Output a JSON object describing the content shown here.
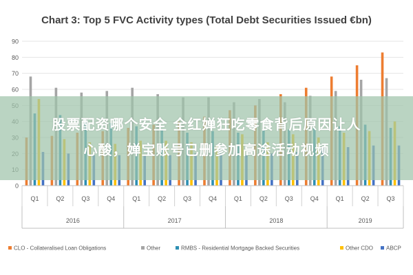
{
  "chart_data": {
    "type": "bar",
    "title": "Chart 3: Top 5 FVC Activity types (Total Debt Securities Issued €bn)",
    "ylim": [
      0,
      90
    ],
    "yticks": [
      0,
      10,
      20,
      30,
      40,
      50,
      60,
      70,
      80,
      90
    ],
    "grid": true,
    "legend_position": "bottom",
    "categories": [
      "Q1",
      "Q2",
      "Q3",
      "Q4",
      "Q1",
      "Q2",
      "Q3",
      "Q4",
      "Q1",
      "Q2",
      "Q3",
      "Q4",
      "Q1",
      "Q2",
      "Q3"
    ],
    "groups": [
      {
        "label": "2016",
        "count": 4
      },
      {
        "label": "2017",
        "count": 4
      },
      {
        "label": "2018",
        "count": 4
      },
      {
        "label": "2019",
        "count": 3
      }
    ],
    "series": [
      {
        "name": "CLO - Collateralised Loan Obligations",
        "color": "#ED7D31",
        "values": [
          30,
          31,
          33,
          34,
          36,
          38,
          40,
          43,
          47,
          50,
          57,
          61,
          68,
          75,
          83
        ]
      },
      {
        "name": "Other",
        "color": "#A5A5A5",
        "values": [
          68,
          61,
          58,
          59,
          61,
          57,
          55,
          55,
          52,
          54,
          52,
          56,
          59,
          66,
          67
        ]
      },
      {
        "name": "RMBS - Residential Mortgage Backed Securities",
        "color": "#2E8FB3",
        "values": [
          45,
          44,
          40,
          39,
          37,
          35,
          33,
          34,
          33,
          35,
          35,
          36,
          37,
          38,
          36
        ]
      },
      {
        "name": "Other CDO",
        "color": "#FFC000",
        "values": [
          54,
          29,
          27,
          26,
          28,
          28,
          27,
          25,
          32,
          27,
          32,
          30,
          33,
          34,
          40
        ]
      },
      {
        "name": "ABCP",
        "color": "#4472C4",
        "values": [
          21,
          20,
          19,
          19,
          19,
          19,
          20,
          20,
          19,
          20,
          21,
          24,
          24,
          25,
          25
        ]
      }
    ]
  },
  "overlay": {
    "line1": "股票配资哪个安全 全红婵狂吃零食背后原因让人",
    "line2": "心酸，婵宝账号已删参加高途活动视频"
  }
}
